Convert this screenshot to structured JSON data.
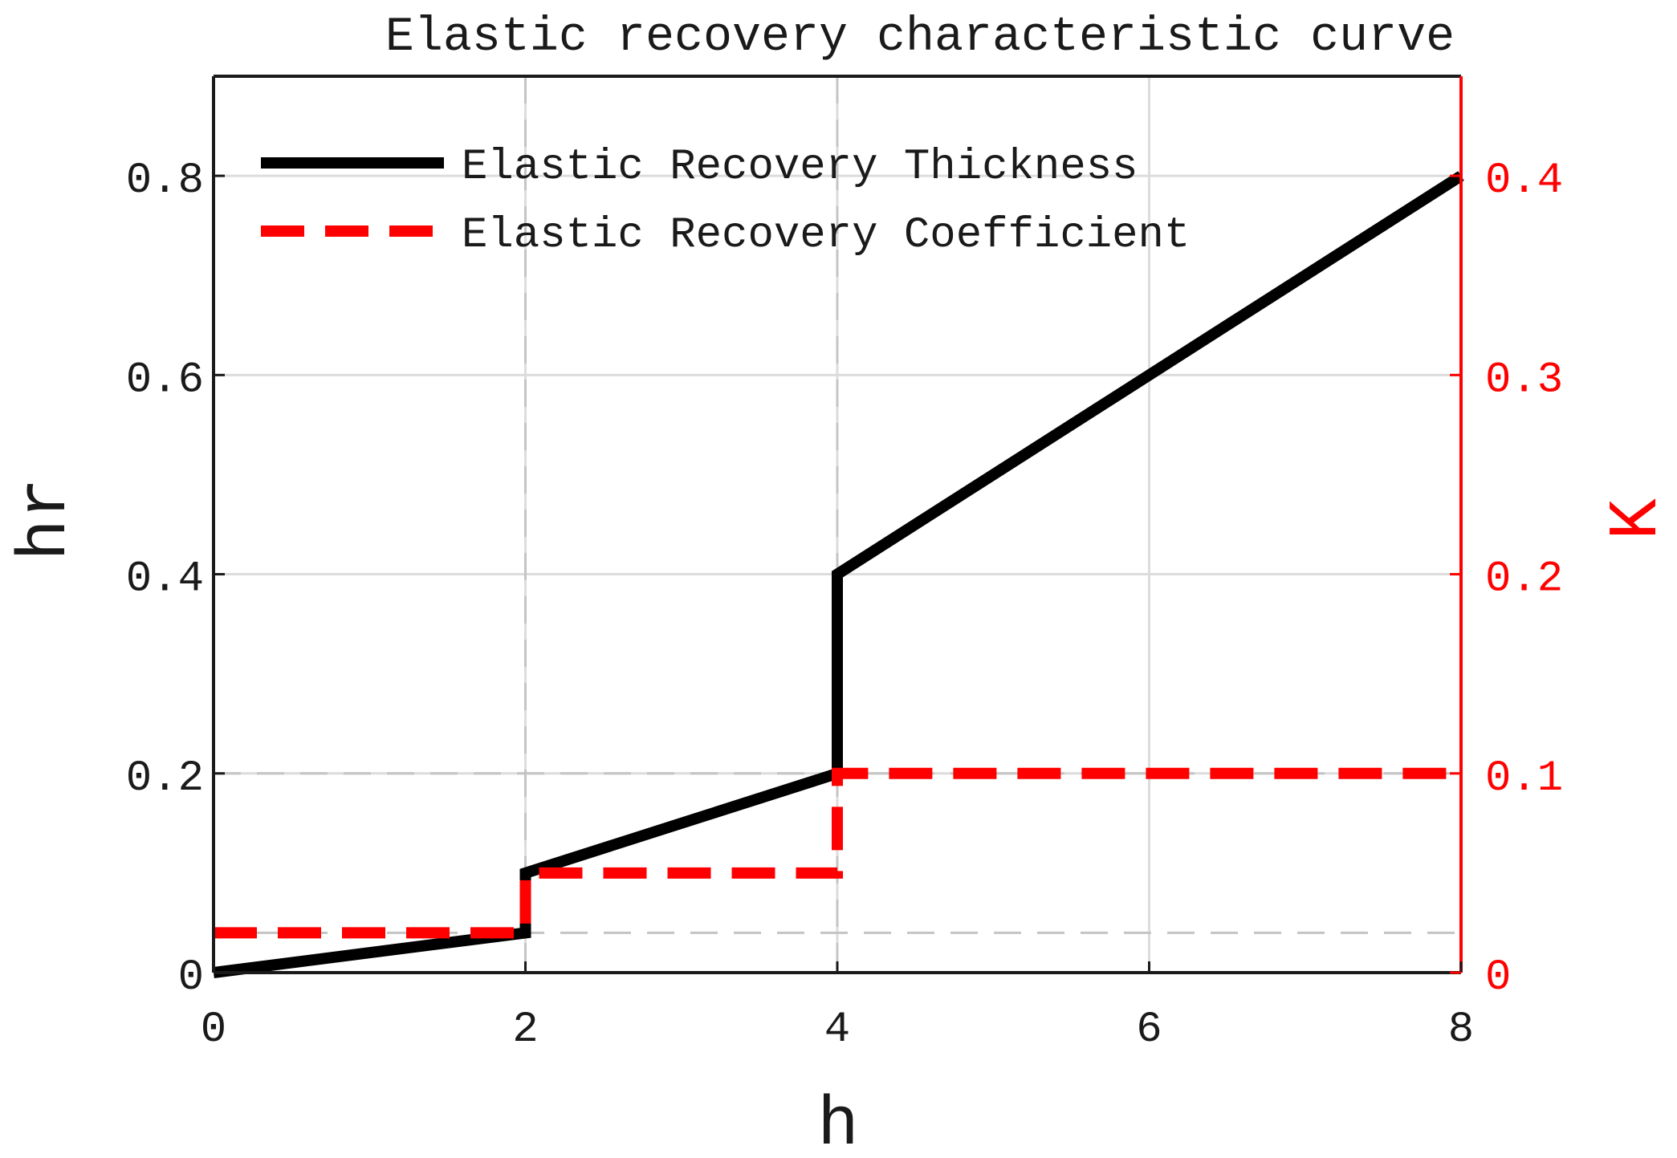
{
  "chart_data": {
    "type": "line",
    "title": "Elastic recovery characteristic curve",
    "xlabel": "h",
    "ylabel": "hr",
    "y2label": "K",
    "xlim": [
      0,
      8
    ],
    "ylim": [
      0,
      0.9
    ],
    "y2lim": [
      0,
      0.45
    ],
    "xticks": [
      0,
      2,
      4,
      6,
      8
    ],
    "xtick_labels": [
      "0",
      "2",
      "4",
      "6",
      "8"
    ],
    "yticks": [
      0,
      0.2,
      0.4,
      0.6,
      0.8
    ],
    "ytick_labels": [
      "0",
      "0.2",
      "0.4",
      "0.6",
      "0.8"
    ],
    "y2ticks": [
      0,
      0.1,
      0.2,
      0.3,
      0.4
    ],
    "y2tick_labels": [
      "0",
      "0.1",
      "0.2",
      "0.3",
      "0.4"
    ],
    "grid": true,
    "legend_position": "top-left",
    "reference_lines": [
      {
        "axis": "x",
        "value": 2
      },
      {
        "axis": "x",
        "value": 4
      },
      {
        "axis": "y",
        "value": 0.2
      },
      {
        "axis": "y",
        "value": 0.04
      }
    ],
    "series": [
      {
        "name": "Elastic Recovery Thickness",
        "axis": "left",
        "color": "#000000",
        "style": "solid",
        "x": [
          0,
          2,
          2,
          4,
          4,
          8
        ],
        "y": [
          0,
          0.04,
          0.1,
          0.2,
          0.4,
          0.8
        ]
      },
      {
        "name": "Elastic Recovery Coefficient",
        "axis": "right",
        "color": "#ff0000",
        "style": "dashed",
        "x": [
          0,
          2,
          2,
          4,
          4,
          8
        ],
        "y": [
          0.02,
          0.02,
          0.05,
          0.05,
          0.1,
          0.1
        ]
      }
    ]
  }
}
